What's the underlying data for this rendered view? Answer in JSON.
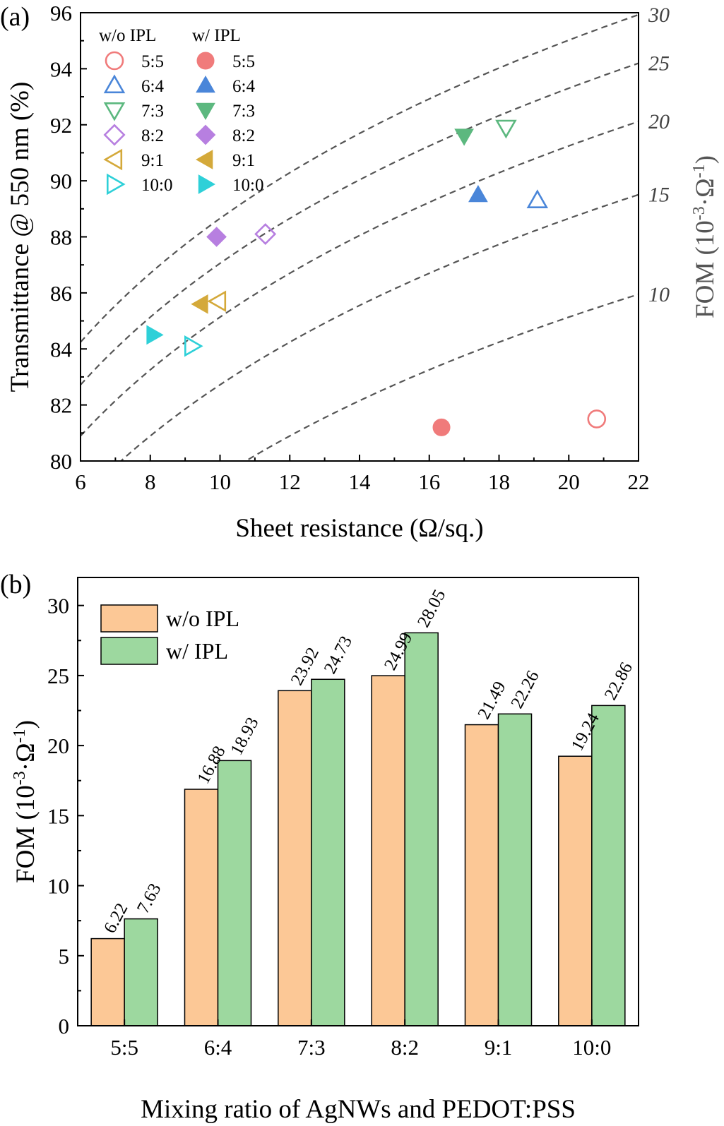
{
  "panels": [
    {
      "label": "(a)",
      "chart_data": {
        "type": "scatter",
        "xlabel": "Sheet resistance (Ω/sq.)",
        "ylabel": "Transmittance @ 550 nm (%)",
        "y2label": "FOM (10-3·Ω-1)",
        "xlim": [
          6,
          22
        ],
        "ylim": [
          80,
          96
        ],
        "xticks": [
          6,
          8,
          10,
          12,
          14,
          16,
          18,
          20,
          22
        ],
        "yticks": [
          80,
          82,
          84,
          86,
          88,
          90,
          92,
          94,
          96
        ],
        "fom_isolines": [
          30,
          25,
          20,
          15,
          10
        ],
        "legend": {
          "placement": "top-left",
          "groups": [
            "w/o IPL",
            "w/ IPL"
          ]
        },
        "series": [
          {
            "name": "5:5",
            "color": "#f07b7b",
            "marker": "circle",
            "wo": {
              "x": 20.8,
              "y": 81.5
            },
            "w": {
              "x": 16.35,
              "y": 81.2
            }
          },
          {
            "name": "6:4",
            "color": "#4a86d9",
            "marker": "triangle-up",
            "wo": {
              "x": 19.1,
              "y": 89.3
            },
            "w": {
              "x": 17.4,
              "y": 89.5
            }
          },
          {
            "name": "7:3",
            "color": "#5cb87f",
            "marker": "triangle-down",
            "wo": {
              "x": 18.2,
              "y": 91.9
            },
            "w": {
              "x": 17.0,
              "y": 91.6
            }
          },
          {
            "name": "8:2",
            "color": "#b77fe0",
            "marker": "diamond",
            "wo": {
              "x": 11.3,
              "y": 88.1
            },
            "w": {
              "x": 9.9,
              "y": 88.0
            }
          },
          {
            "name": "9:1",
            "color": "#d4a93a",
            "marker": "triangle-left",
            "wo": {
              "x": 9.95,
              "y": 85.7
            },
            "w": {
              "x": 9.45,
              "y": 85.6
            }
          },
          {
            "name": "10:0",
            "color": "#2ed0d8",
            "marker": "triangle-right",
            "wo": {
              "x": 9.2,
              "y": 84.1
            },
            "w": {
              "x": 8.1,
              "y": 84.5
            }
          }
        ]
      }
    },
    {
      "label": "(b)",
      "chart_data": {
        "type": "bar",
        "xlabel": "Mixing ratio of AgNWs and PEDOT:PSS",
        "ylabel": "FOM (10-3·Ω-1)",
        "ylim": [
          0,
          32
        ],
        "yticks": [
          0,
          5,
          10,
          15,
          20,
          25,
          30
        ],
        "categories": [
          "5:5",
          "6:4",
          "7:3",
          "8:2",
          "9:1",
          "10:0"
        ],
        "legend": {
          "placement": "top-left"
        },
        "series": [
          {
            "name": "w/o IPL",
            "color": "#fcc896",
            "values": [
              6.22,
              16.88,
              23.92,
              24.99,
              21.49,
              19.24
            ],
            "labels": [
              "6.22",
              "16.88",
              "23.92",
              "24.99",
              "21.49",
              "19.24"
            ]
          },
          {
            "name": "w/ IPL",
            "color": "#9dd89f",
            "values": [
              7.63,
              18.93,
              24.73,
              28.05,
              22.26,
              22.86
            ],
            "labels": [
              "7.63",
              "18.93",
              "24.73",
              "28.05",
              "22.26",
              "22.86"
            ]
          }
        ]
      }
    }
  ]
}
